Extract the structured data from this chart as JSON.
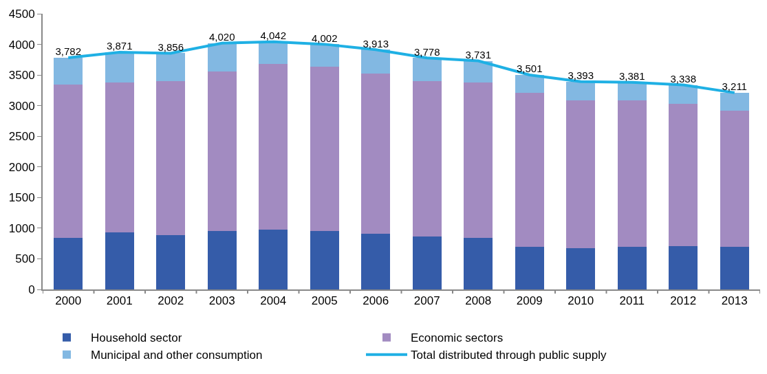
{
  "chart_data": {
    "type": "bar",
    "stacked": true,
    "categories": [
      "2000",
      "2001",
      "2002",
      "2003",
      "2004",
      "2005",
      "2006",
      "2007",
      "2008",
      "2009",
      "2010",
      "2011",
      "2012",
      "2013"
    ],
    "series": [
      {
        "name": "Household sector",
        "color": "#355ca9",
        "values": [
          844,
          928,
          884,
          952,
          972,
          952,
          904,
          864,
          844,
          695,
          675,
          695,
          711,
          695
        ]
      },
      {
        "name": "Economic sectors",
        "color": "#a28bc1",
        "values": [
          2495,
          2455,
          2519,
          2600,
          2704,
          2680,
          2624,
          2539,
          2539,
          2519,
          2415,
          2395,
          2314,
          2226
        ]
      },
      {
        "name": "Municipal and other consumption",
        "color": "#82b8e2",
        "values": [
          443,
          488,
          453,
          468,
          366,
          370,
          385,
          375,
          348,
          287,
          303,
          291,
          313,
          290
        ]
      },
      {
        "name": "Total distributed through public supply",
        "type": "line",
        "color": "#1fb0e4",
        "values": [
          3782,
          3871,
          3856,
          4020,
          4042,
          4002,
          3913,
          3778,
          3731,
          3501,
          3393,
          3381,
          3338,
          3211
        ],
        "value_labels": [
          "3,782",
          "3,871",
          "3,856",
          "4,020",
          "4,042",
          "4,002",
          "3,913",
          "3,778",
          "3,731",
          "3,501",
          "3,393",
          "3,381",
          "3,338",
          "3,211"
        ]
      }
    ],
    "ylim": [
      0,
      4500
    ],
    "yticks": [
      0,
      500,
      1000,
      1500,
      2000,
      2500,
      3000,
      3500,
      4000,
      4500
    ],
    "grid": false,
    "legend": "bottom",
    "marker": "none",
    "line_style": "solid"
  }
}
